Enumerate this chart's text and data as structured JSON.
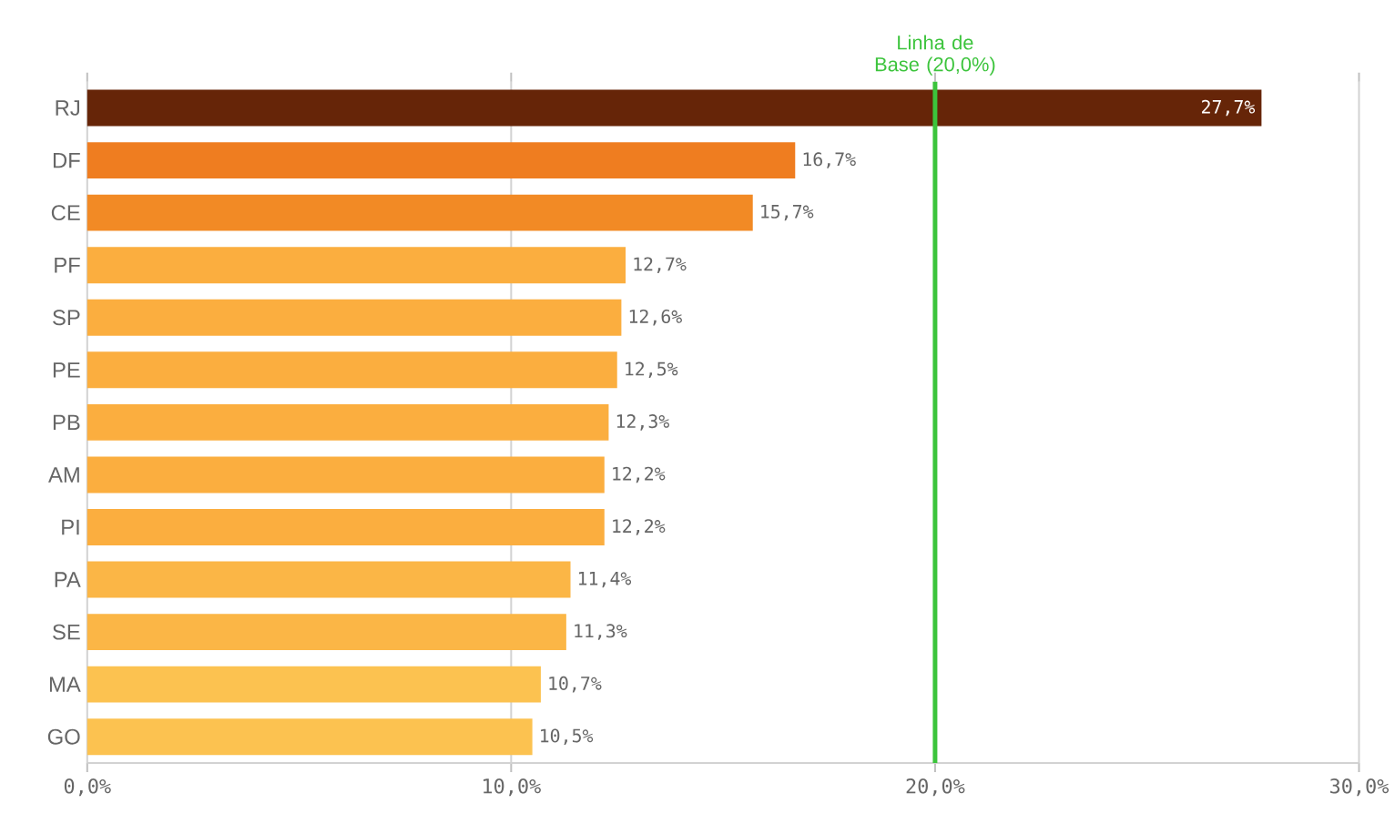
{
  "chart_data": {
    "type": "bar",
    "orientation": "horizontal",
    "categories": [
      "RJ",
      "DF",
      "CE",
      "PF",
      "SP",
      "PE",
      "PB",
      "AM",
      "PI",
      "PA",
      "SE",
      "MA",
      "GO"
    ],
    "values": [
      27.7,
      16.7,
      15.7,
      12.7,
      12.6,
      12.5,
      12.3,
      12.2,
      12.2,
      11.4,
      11.3,
      10.7,
      10.5
    ],
    "value_labels": [
      "27,7%",
      "16,7%",
      "15,7%",
      "12,7%",
      "12,6%",
      "12,5%",
      "12,3%",
      "12,2%",
      "12,2%",
      "11,4%",
      "11,3%",
      "10,7%",
      "10,5%"
    ],
    "colors": [
      "#662508",
      "#ef7d20",
      "#f28a25",
      "#fbae3f",
      "#fbae3f",
      "#fbae3f",
      "#fbae3f",
      "#fbae3f",
      "#fbae3f",
      "#fbb646",
      "#fbb646",
      "#fcc250",
      "#fcc250"
    ],
    "xlim": [
      0,
      30
    ],
    "xticks": [
      {
        "value": 0,
        "label": "0,0%"
      },
      {
        "value": 10,
        "label": "10,0%"
      },
      {
        "value": 20,
        "label": "20,0%"
      },
      {
        "value": 30,
        "label": "30,0%"
      }
    ],
    "grid": "x",
    "ref_lines": [
      {
        "axis": "x",
        "value": 20,
        "label": "Linha de Base (20,0%)",
        "color": "#3cc43c"
      }
    ]
  }
}
